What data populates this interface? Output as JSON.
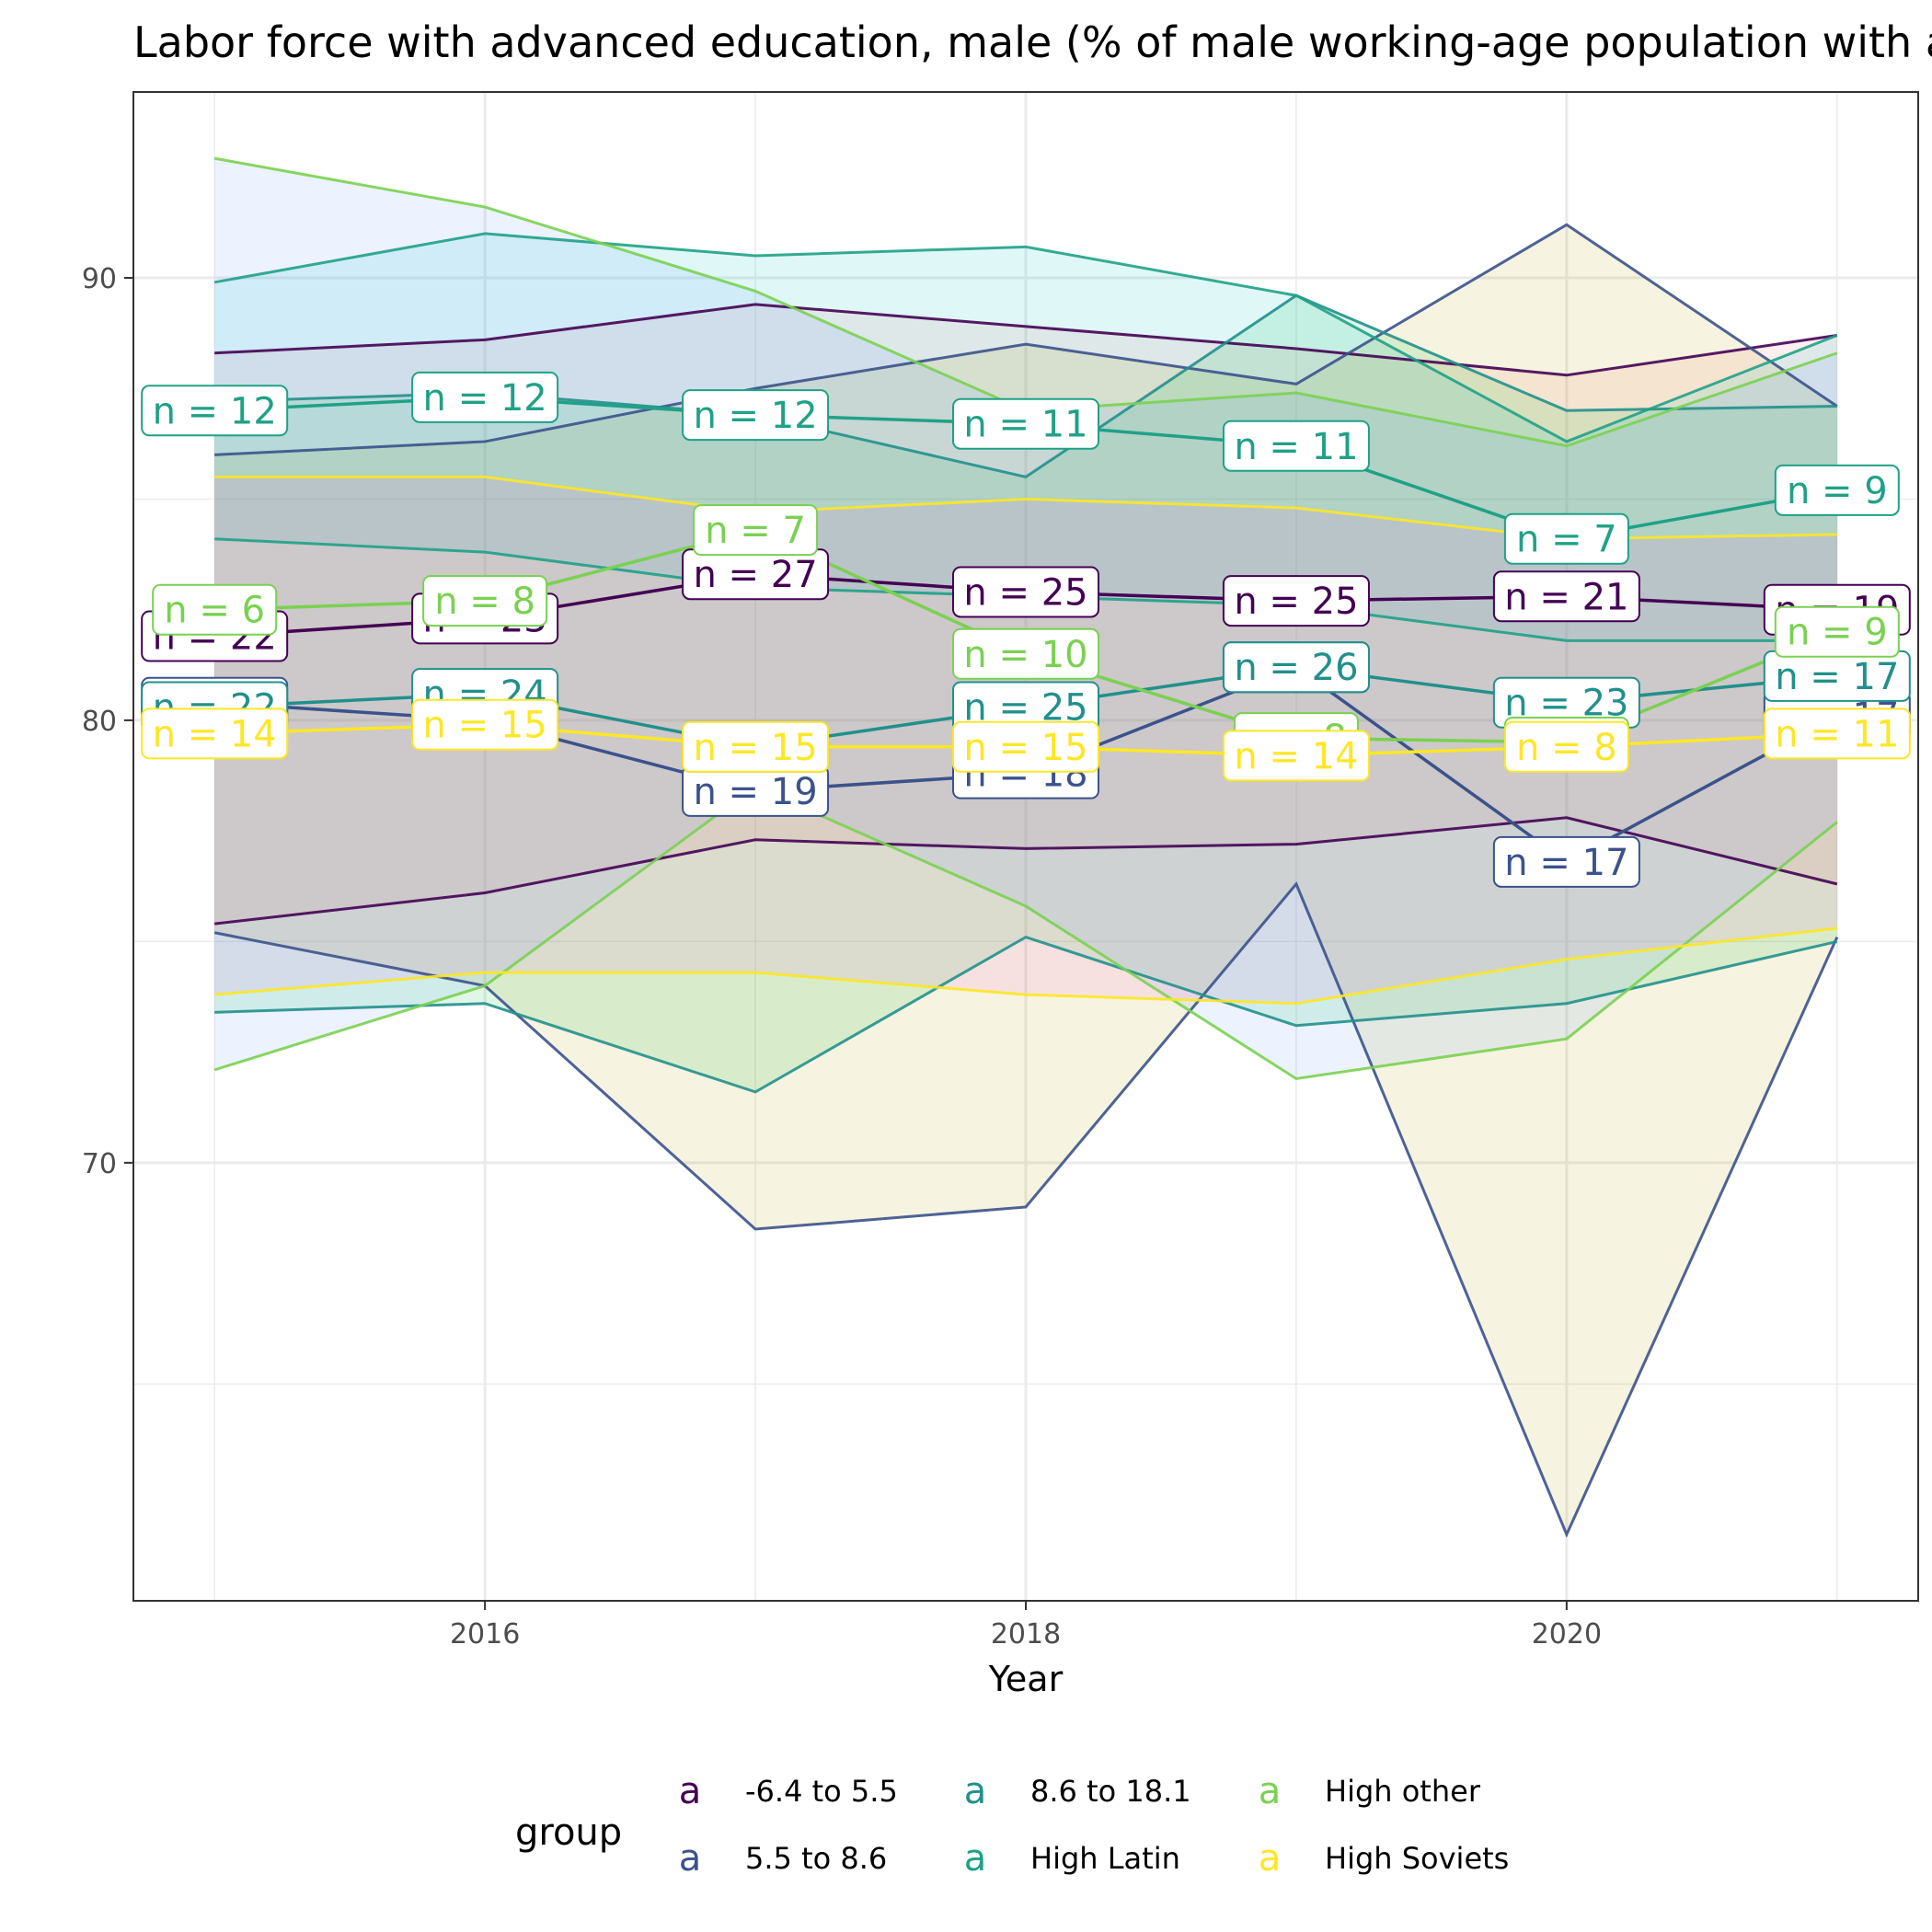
{
  "chart_data": {
    "type": "line",
    "title": "Labor force with advanced education, male (% of male working-age population with advanced education)",
    "xlabel": "Year",
    "ylabel": "",
    "xlim": [
      2014.7,
      2021.3
    ],
    "ylim": [
      60.1,
      94.2
    ],
    "x_ticks": [
      2016,
      2018,
      2020
    ],
    "y_ticks": [
      70,
      80,
      90
    ],
    "x": [
      2015,
      2016,
      2017,
      2018,
      2019,
      2020,
      2021
    ],
    "legend": {
      "title": "group",
      "position": "bottom",
      "key_glyph": "a"
    },
    "series": [
      {
        "name": "-6.4 to 5.5",
        "color": "#440154",
        "mean": [
          81.9,
          82.3,
          83.3,
          82.9,
          82.7,
          82.8,
          82.5
        ],
        "upper": [
          88.3,
          88.6,
          89.4,
          88.9,
          88.4,
          87.8,
          88.7
        ],
        "lower": [
          75.4,
          76.1,
          77.3,
          77.1,
          77.2,
          77.8,
          76.3
        ],
        "n": [
          "n = 22",
          "n = 23",
          "n = 27",
          "n = 25",
          "n = 25",
          "n = 21",
          "n = 19"
        ]
      },
      {
        "name": "5.5 to 8.6",
        "color": "#3B528B",
        "mean": [
          80.4,
          80.0,
          78.4,
          78.8,
          81.2,
          76.8,
          80.1
        ],
        "upper": [
          86.0,
          86.3,
          87.5,
          88.5,
          87.6,
          91.2,
          87.1
        ],
        "lower": [
          75.2,
          74.0,
          68.5,
          69.0,
          76.3,
          61.6,
          75.1
        ],
        "n": [
          "n = 23",
          "n = 23",
          "n = 19",
          "n = 18",
          "n = 20",
          "n = 17",
          "n = 17"
        ]
      },
      {
        "name": "8.6 to 18.1",
        "color": "#21908C",
        "mean": [
          80.3,
          80.6,
          79.4,
          80.3,
          81.2,
          80.4,
          81.0
        ],
        "upper": [
          87.2,
          87.4,
          86.9,
          85.5,
          89.6,
          87.0,
          87.1
        ],
        "lower": [
          73.4,
          73.6,
          71.6,
          75.1,
          73.1,
          73.6,
          75.0
        ],
        "n": [
          "n = 22",
          "n = 24",
          "n = 24",
          "n = 25",
          "n = 26",
          "n = 23",
          "n = 17"
        ]
      },
      {
        "name": "High Latin",
        "color": "#1FA187",
        "mean": [
          87.0,
          87.3,
          86.9,
          86.7,
          86.2,
          84.1,
          85.2
        ],
        "upper": [
          89.9,
          91.0,
          90.5,
          90.7,
          89.6,
          86.3,
          88.7
        ],
        "lower": [
          84.1,
          83.8,
          83.0,
          82.8,
          82.6,
          81.8,
          81.8
        ],
        "n": [
          "n = 12",
          "n = 12",
          "n = 12",
          "n = 11",
          "n = 11",
          "n = 7",
          "n = 9"
        ]
      },
      {
        "name": "High other",
        "color": "#7AD151",
        "mean": [
          82.5,
          82.7,
          84.3,
          81.5,
          79.6,
          79.5,
          82.0
        ],
        "upper": [
          92.7,
          91.6,
          89.7,
          87.0,
          87.4,
          86.2,
          88.3
        ],
        "lower": [
          72.1,
          74.0,
          78.5,
          75.8,
          71.9,
          72.8,
          77.7
        ],
        "n": [
          "n = 6",
          "n = 8",
          "n = 7",
          "n = 10",
          "n = 8",
          "n = 8",
          "n = 9"
        ]
      },
      {
        "name": "High Soviets",
        "color": "#FDE725",
        "mean": [
          79.7,
          79.9,
          79.4,
          79.4,
          79.2,
          79.4,
          79.7
        ],
        "upper": [
          85.5,
          85.5,
          84.7,
          85.0,
          84.8,
          84.1,
          84.2
        ],
        "lower": [
          73.8,
          74.3,
          74.3,
          73.8,
          73.6,
          74.6,
          75.3
        ],
        "n": [
          "n = 14",
          "n = 15",
          "n = 15",
          "n = 15",
          "n = 14",
          "n = 8",
          "n = 11"
        ]
      }
    ]
  }
}
